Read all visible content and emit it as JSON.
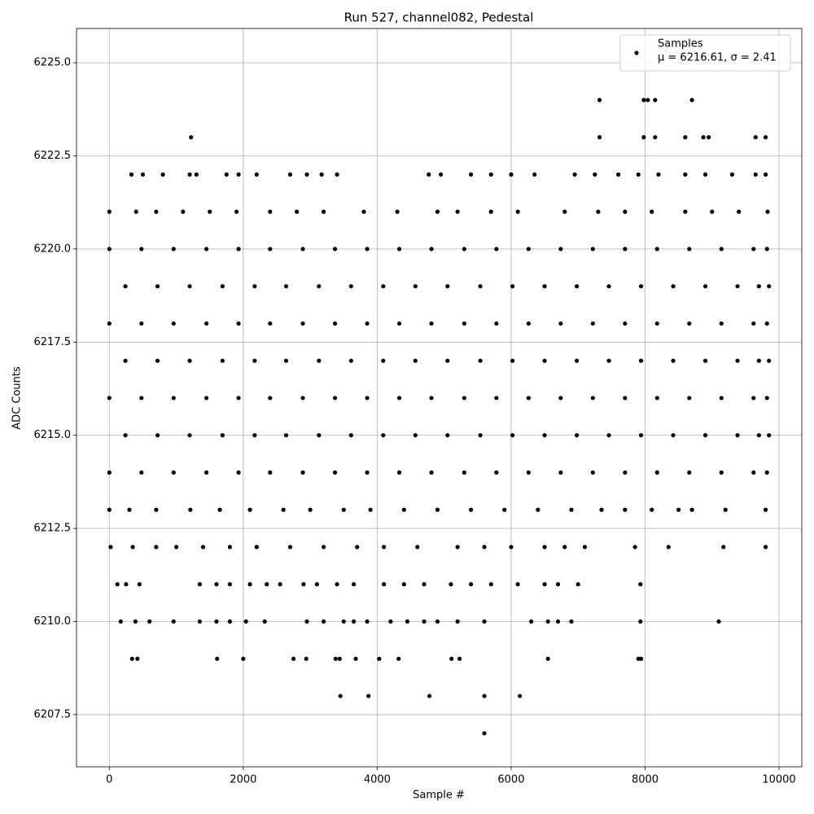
{
  "chart_data": {
    "type": "scatter",
    "title": "Run 527, channel082, Pedestal",
    "x_label": "Sample #",
    "y_label": "ADC Counts",
    "series_name": "Samples",
    "annotation": "μ = 6216.61, σ = 2.41",
    "legend": "upper right",
    "color": "#000000",
    "grid": true,
    "xlim": [
      -490,
      10340
    ],
    "ylim": [
      6206.1,
      6225.92
    ],
    "xticks": [
      0,
      2000,
      4000,
      6000,
      8000,
      10000
    ],
    "yticks": [
      6207.5,
      {
        "value": 6210,
        "label": "6210.0"
      },
      6212.5,
      {
        "value": 6215,
        "label": "6215.0"
      },
      6217.5,
      {
        "value": 6220,
        "label": "6220.0"
      },
      6222.5,
      {
        "value": 6225,
        "label": "6225.0"
      }
    ],
    "x": [
      0,
      480,
      960,
      1450,
      1930,
      2400,
      2890,
      3370,
      3850,
      4330,
      4810,
      5300,
      5780,
      6260,
      6740,
      7220,
      7700,
      8180,
      8660,
      9140,
      9620,
      9820,
      240,
      720,
      1200,
      1690,
      2170,
      2640,
      3130,
      3610,
      4090,
      4570,
      5050,
      5540,
      6020,
      6500,
      6980,
      7460,
      7940,
      8420,
      8900,
      9380,
      9700,
      9850,
      0,
      480,
      960,
      1450,
      1930,
      2400,
      2890,
      3370,
      3850,
      4330,
      4810,
      5300,
      5780,
      6260,
      6740,
      7220,
      7700,
      8180,
      8660,
      9140,
      9620,
      9820,
      240,
      720,
      1200,
      1690,
      2170,
      2640,
      3130,
      3610,
      4090,
      4570,
      5050,
      5540,
      6020,
      6500,
      6980,
      7460,
      7940,
      8420,
      8900,
      9380,
      9700,
      9850,
      0,
      480,
      960,
      1450,
      1930,
      2400,
      2890,
      3370,
      3850,
      4330,
      4810,
      5300,
      5780,
      6260,
      6740,
      7220,
      7700,
      8180,
      8660,
      9140,
      9620,
      9820,
      240,
      720,
      1200,
      1690,
      2170,
      2640,
      3130,
      3610,
      4090,
      4570,
      5050,
      5540,
      6020,
      6500,
      6980,
      7460,
      7940,
      8420,
      8900,
      9380,
      9700,
      9850,
      0,
      480,
      960,
      1450,
      1930,
      2400,
      2890,
      3370,
      3850,
      4330,
      4810,
      5300,
      5780,
      6260,
      6740,
      7220,
      7700,
      8180,
      8660,
      9140,
      9620,
      9820,
      0,
      400,
      700,
      1100,
      1500,
      1900,
      2400,
      2800,
      3200,
      3800,
      4300,
      4900,
      5200,
      5700,
      6100,
      6800,
      7300,
      7700,
      8100,
      8600,
      9000,
      9400,
      9830,
      0,
      300,
      700,
      1210,
      1650,
      2100,
      2600,
      3000,
      3500,
      3900,
      4400,
      4900,
      5400,
      5900,
      6400,
      6900,
      7350,
      7700,
      8100,
      8500,
      8700,
      9200,
      9800,
      20,
      350,
      700,
      1000,
      1400,
      1800,
      2200,
      2700,
      3200,
      3700,
      4100,
      4600,
      5200,
      5600,
      6000,
      6500,
      6800,
      7100,
      7850,
      8350,
      9170,
      9800,
      330,
      500,
      800,
      1200,
      1300,
      1750,
      1930,
      2200,
      2700,
      2950,
      3170,
      3400,
      4770,
      4950,
      5400,
      5700,
      6000,
      6350,
      6950,
      7250,
      7600,
      7900,
      8200,
      8600,
      8900,
      9300,
      9650,
      9800,
      120,
      250,
      450,
      1350,
      1600,
      1800,
      2100,
      2350,
      2550,
      2900,
      3100,
      3400,
      3650,
      4100,
      4400,
      4700,
      5100,
      5400,
      5700,
      6100,
      6500,
      6700,
      7000,
      7930,
      170,
      390,
      600,
      960,
      1350,
      1600,
      1800,
      2040,
      2320,
      2950,
      3200,
      3500,
      3650,
      3850,
      4200,
      4450,
      4700,
      4900,
      5200,
      5600,
      6300,
      6550,
      6700,
      6900,
      7930,
      9100,
      340,
      420,
      1610,
      2000,
      2750,
      2940,
      3380,
      3440,
      3680,
      4030,
      4320,
      5110,
      5230,
      6550,
      7900,
      7940,
      3450,
      3870,
      4780,
      5600,
      6130,
      5600,
      1220,
      7320,
      7980,
      8150,
      8600,
      8870,
      8950,
      9650,
      9800,
      7320,
      7980,
      8040,
      8150,
      8700
    ],
    "values": [
      6220,
      6220,
      6220,
      6220,
      6220,
      6220,
      6220,
      6220,
      6220,
      6220,
      6220,
      6220,
      6220,
      6220,
      6220,
      6220,
      6220,
      6220,
      6220,
      6220,
      6220,
      6220,
      6219,
      6219,
      6219,
      6219,
      6219,
      6219,
      6219,
      6219,
      6219,
      6219,
      6219,
      6219,
      6219,
      6219,
      6219,
      6219,
      6219,
      6219,
      6219,
      6219,
      6219,
      6219,
      6218,
      6218,
      6218,
      6218,
      6218,
      6218,
      6218,
      6218,
      6218,
      6218,
      6218,
      6218,
      6218,
      6218,
      6218,
      6218,
      6218,
      6218,
      6218,
      6218,
      6218,
      6218,
      6217,
      6217,
      6217,
      6217,
      6217,
      6217,
      6217,
      6217,
      6217,
      6217,
      6217,
      6217,
      6217,
      6217,
      6217,
      6217,
      6217,
      6217,
      6217,
      6217,
      6217,
      6217,
      6216,
      6216,
      6216,
      6216,
      6216,
      6216,
      6216,
      6216,
      6216,
      6216,
      6216,
      6216,
      6216,
      6216,
      6216,
      6216,
      6216,
      6216,
      6216,
      6216,
      6216,
      6216,
      6215,
      6215,
      6215,
      6215,
      6215,
      6215,
      6215,
      6215,
      6215,
      6215,
      6215,
      6215,
      6215,
      6215,
      6215,
      6215,
      6215,
      6215,
      6215,
      6215,
      6215,
      6215,
      6214,
      6214,
      6214,
      6214,
      6214,
      6214,
      6214,
      6214,
      6214,
      6214,
      6214,
      6214,
      6214,
      6214,
      6214,
      6214,
      6214,
      6214,
      6214,
      6214,
      6214,
      6214,
      6221,
      6221,
      6221,
      6221,
      6221,
      6221,
      6221,
      6221,
      6221,
      6221,
      6221,
      6221,
      6221,
      6221,
      6221,
      6221,
      6221,
      6221,
      6221,
      6221,
      6221,
      6221,
      6221,
      6213,
      6213,
      6213,
      6213,
      6213,
      6213,
      6213,
      6213,
      6213,
      6213,
      6213,
      6213,
      6213,
      6213,
      6213,
      6213,
      6213,
      6213,
      6213,
      6213,
      6213,
      6213,
      6213,
      6212,
      6212,
      6212,
      6212,
      6212,
      6212,
      6212,
      6212,
      6212,
      6212,
      6212,
      6212,
      6212,
      6212,
      6212,
      6212,
      6212,
      6212,
      6212,
      6212,
      6212,
      6212,
      6222,
      6222,
      6222,
      6222,
      6222,
      6222,
      6222,
      6222,
      6222,
      6222,
      6222,
      6222,
      6222,
      6222,
      6222,
      6222,
      6222,
      6222,
      6222,
      6222,
      6222,
      6222,
      6222,
      6222,
      6222,
      6222,
      6222,
      6222,
      6211,
      6211,
      6211,
      6211,
      6211,
      6211,
      6211,
      6211,
      6211,
      6211,
      6211,
      6211,
      6211,
      6211,
      6211,
      6211,
      6211,
      6211,
      6211,
      6211,
      6211,
      6211,
      6211,
      6211,
      6210,
      6210,
      6210,
      6210,
      6210,
      6210,
      6210,
      6210,
      6210,
      6210,
      6210,
      6210,
      6210,
      6210,
      6210,
      6210,
      6210,
      6210,
      6210,
      6210,
      6210,
      6210,
      6210,
      6210,
      6210,
      6210,
      6209,
      6209,
      6209,
      6209,
      6209,
      6209,
      6209,
      6209,
      6209,
      6209,
      6209,
      6209,
      6209,
      6209,
      6209,
      6209,
      6208,
      6208,
      6208,
      6208,
      6208,
      6207,
      6223,
      6223,
      6223,
      6223,
      6223,
      6223,
      6223,
      6223,
      6223,
      6224,
      6224,
      6224,
      6224,
      6224
    ]
  }
}
